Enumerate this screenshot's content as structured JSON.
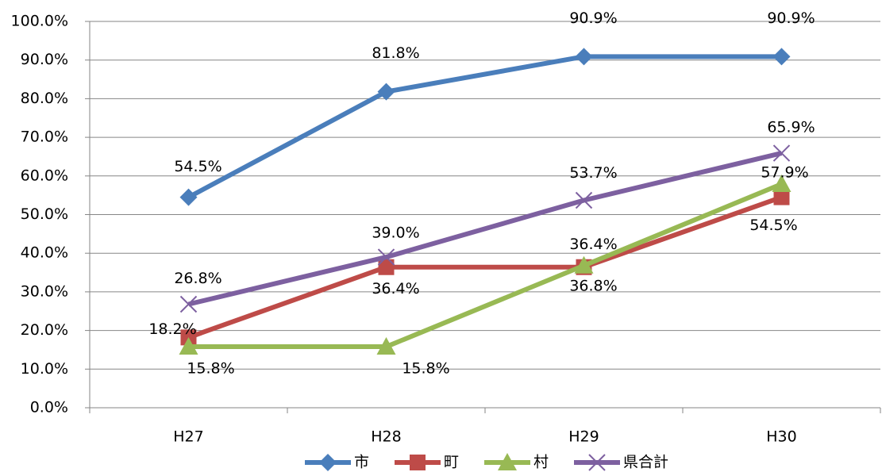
{
  "chart_data": {
    "type": "line",
    "categories": [
      "H27",
      "H28",
      "H29",
      "H30"
    ],
    "series": [
      {
        "name": "市",
        "color": "#4a7ebb",
        "marker": "diamond",
        "values": [
          54.5,
          81.8,
          90.9,
          90.9
        ],
        "value_labels": [
          "54.5%",
          "81.8%",
          "90.9%",
          "90.9%"
        ]
      },
      {
        "name": "町",
        "color": "#be4b48",
        "marker": "square",
        "values": [
          18.2,
          36.4,
          36.4,
          54.5
        ],
        "value_labels": [
          "18.2%",
          "36.4%",
          "36.4%",
          "54.5%"
        ]
      },
      {
        "name": "村",
        "color": "#98b954",
        "marker": "triangle",
        "values": [
          15.8,
          15.8,
          36.8,
          57.9
        ],
        "value_labels": [
          "15.8%",
          "15.8%",
          "36.8%",
          "57.9%"
        ]
      },
      {
        "name": "県合計",
        "color": "#7d60a0",
        "marker": "x",
        "values": [
          26.8,
          39.0,
          53.7,
          65.9
        ],
        "value_labels": [
          "26.8%",
          "39.0%",
          "53.7%",
          "65.9%"
        ]
      }
    ],
    "ylim": [
      0,
      100
    ],
    "yticks": [
      {
        "value": 0,
        "label": "0.0%"
      },
      {
        "value": 10,
        "label": "10.0%"
      },
      {
        "value": 20,
        "label": "20.0%"
      },
      {
        "value": 30,
        "label": "30.0%"
      },
      {
        "value": 40,
        "label": "40.0%"
      },
      {
        "value": 50,
        "label": "50.0%"
      },
      {
        "value": 60,
        "label": "60.0%"
      },
      {
        "value": 70,
        "label": "70.0%"
      },
      {
        "value": 80,
        "label": "80.0%"
      },
      {
        "value": 90,
        "label": "90.0%"
      },
      {
        "value": 100,
        "label": "100.0%"
      }
    ],
    "grid": true,
    "legend": "bottom"
  }
}
